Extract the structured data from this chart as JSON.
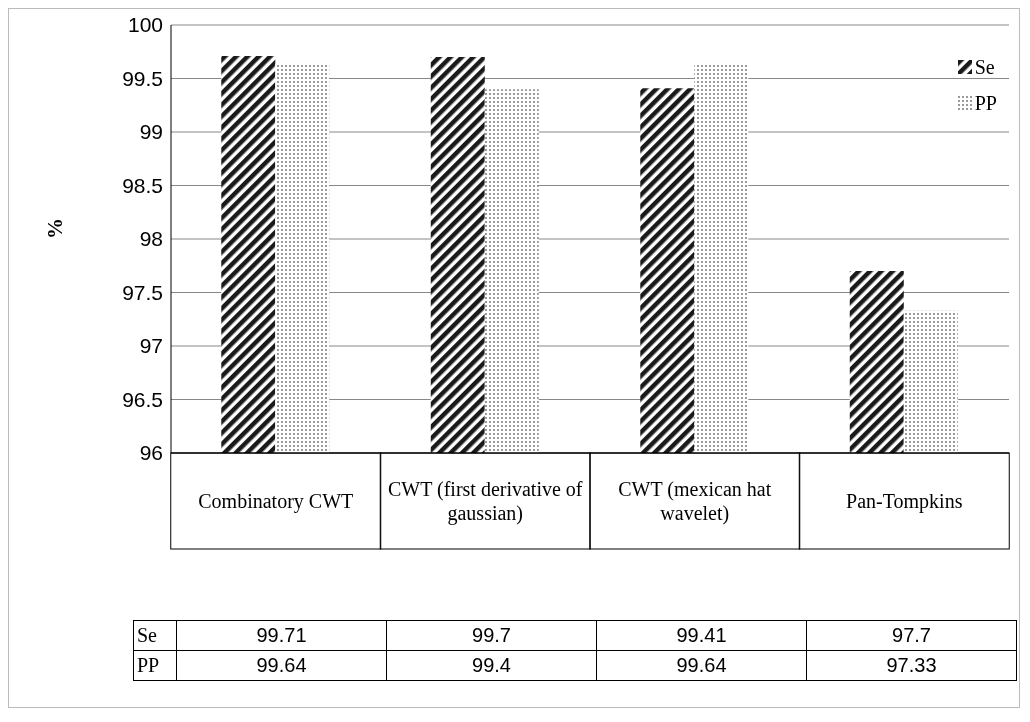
{
  "chart_data": {
    "type": "bar",
    "ylabel": "%",
    "categories": [
      "Combinatory CWT",
      "CWT (first derivative of gaussian)",
      "CWT (mexican hat wavelet)",
      "Pan-Tompkins"
    ],
    "series": [
      {
        "name": "Se",
        "color": "#1a1a1a",
        "values": [
          99.71,
          99.7,
          99.41,
          97.7
        ]
      },
      {
        "name": "PP",
        "color": "#9a9a9a",
        "values": [
          99.64,
          99.4,
          99.64,
          97.33
        ]
      }
    ],
    "ylim": [
      96,
      100
    ],
    "yticks": [
      96,
      96.5,
      97,
      97.5,
      98,
      98.5,
      99,
      99.5,
      100
    ],
    "grid": "y",
    "legend": "top right",
    "data_labels": true
  }
}
